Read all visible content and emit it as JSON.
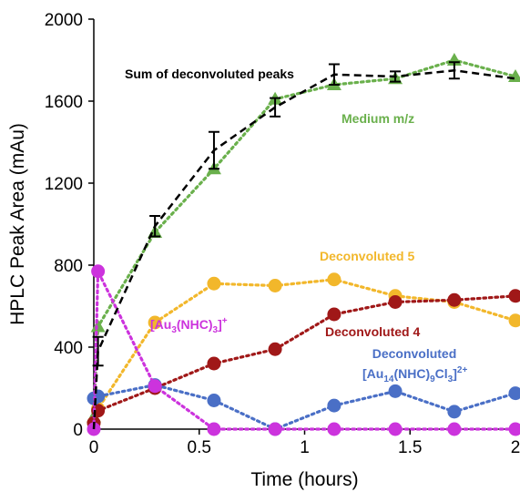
{
  "chart_data": {
    "type": "line",
    "xlabel": "Time (hours)",
    "ylabel": "HPLC Peak Area (mAu)",
    "xlim": [
      0,
      2
    ],
    "ylim": [
      0,
      2000
    ],
    "xticks": [
      0,
      0.5,
      1,
      1.5,
      2
    ],
    "yticks": [
      0,
      400,
      800,
      1200,
      1600,
      2000
    ],
    "xtick_labels": [
      "0",
      "0.5",
      "1",
      "1.5",
      "2"
    ],
    "ytick_labels": [
      "0",
      "400",
      "800",
      "1200",
      "1600",
      "2000"
    ],
    "grid": false,
    "series": [
      {
        "name": "Sum of deconvoluted peaks",
        "color": "#000000",
        "line": "dashed",
        "marker": "none",
        "x": [
          0,
          0.02,
          0.29,
          0.57,
          0.86,
          1.14,
          1.43,
          1.71,
          2.0
        ],
        "y": [
          0,
          380,
          990,
          1360,
          1570,
          1730,
          1720,
          1750,
          1710
        ],
        "error": [
          0,
          70,
          50,
          90,
          45,
          50,
          25,
          40,
          0
        ]
      },
      {
        "name": "Medium m/z",
        "color": "#6ab04c",
        "line": "dotted",
        "marker": "triangle",
        "x": [
          0,
          0.02,
          0.29,
          0.57,
          0.86,
          1.14,
          1.43,
          1.71,
          2.0
        ],
        "y": [
          60,
          500,
          960,
          1270,
          1610,
          1680,
          1710,
          1800,
          1720
        ]
      },
      {
        "name": "Deconvoluted 5",
        "color": "#f2b72b",
        "line": "dotted",
        "marker": "circle",
        "x": [
          0,
          0.02,
          0.29,
          0.57,
          0.86,
          1.14,
          1.43,
          1.71,
          2.0
        ],
        "y": [
          30,
          100,
          520,
          710,
          700,
          730,
          650,
          620,
          530
        ]
      },
      {
        "name": "Deconvoluted 4",
        "color": "#a01818",
        "line": "dotted",
        "marker": "circle",
        "x": [
          0,
          0.02,
          0.29,
          0.57,
          0.86,
          1.14,
          1.43,
          1.71,
          2.0
        ],
        "y": [
          30,
          90,
          200,
          320,
          390,
          560,
          620,
          630,
          650
        ]
      },
      {
        "name_parts": [
          "Deconvoluted",
          "[Au",
          "14",
          "(NHC)",
          "9",
          "Cl",
          "3",
          "]",
          "2+"
        ],
        "color": "#4a6fc6",
        "line": "dotted",
        "marker": "circle",
        "x": [
          0,
          0.02,
          0.29,
          0.57,
          0.86,
          1.14,
          1.43,
          1.71,
          2.0
        ],
        "y": [
          150,
          160,
          215,
          140,
          0,
          115,
          185,
          85,
          175
        ]
      },
      {
        "name_parts": [
          "[Au",
          "3",
          "(NHC)",
          "3",
          "]",
          "+"
        ],
        "color": "#cc33dd",
        "line": "dotted",
        "marker": "circle",
        "x": [
          0,
          0.02,
          0.29,
          0.57,
          0.86,
          1.14,
          1.43,
          1.71,
          2.0
        ],
        "y": [
          0,
          770,
          210,
          0,
          0,
          0,
          0,
          0,
          0
        ]
      }
    ]
  }
}
